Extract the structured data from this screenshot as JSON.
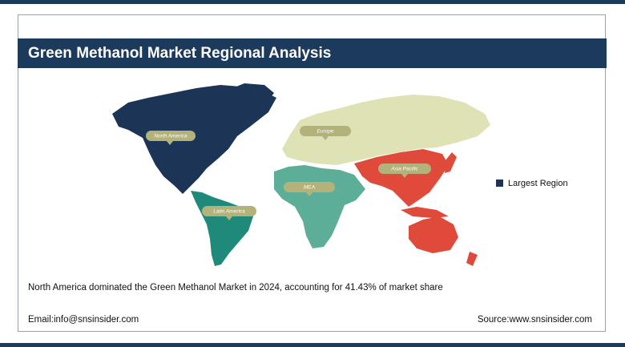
{
  "header": {
    "title": "Green Methanol Market Regional Analysis"
  },
  "map": {
    "regions": [
      {
        "label": "North America"
      },
      {
        "label": "Europe"
      },
      {
        "label": "Asia Pacific"
      },
      {
        "label": "MEA"
      },
      {
        "label": "Latin America"
      }
    ]
  },
  "legend": {
    "label": "Largest Region"
  },
  "caption": "North America dominated the Green Methanol Market in 2024, accounting for 41.43% of market share",
  "footer": {
    "email": "Email:info@snsinsider.com",
    "source": "Source:www.snsinsider.com"
  }
}
